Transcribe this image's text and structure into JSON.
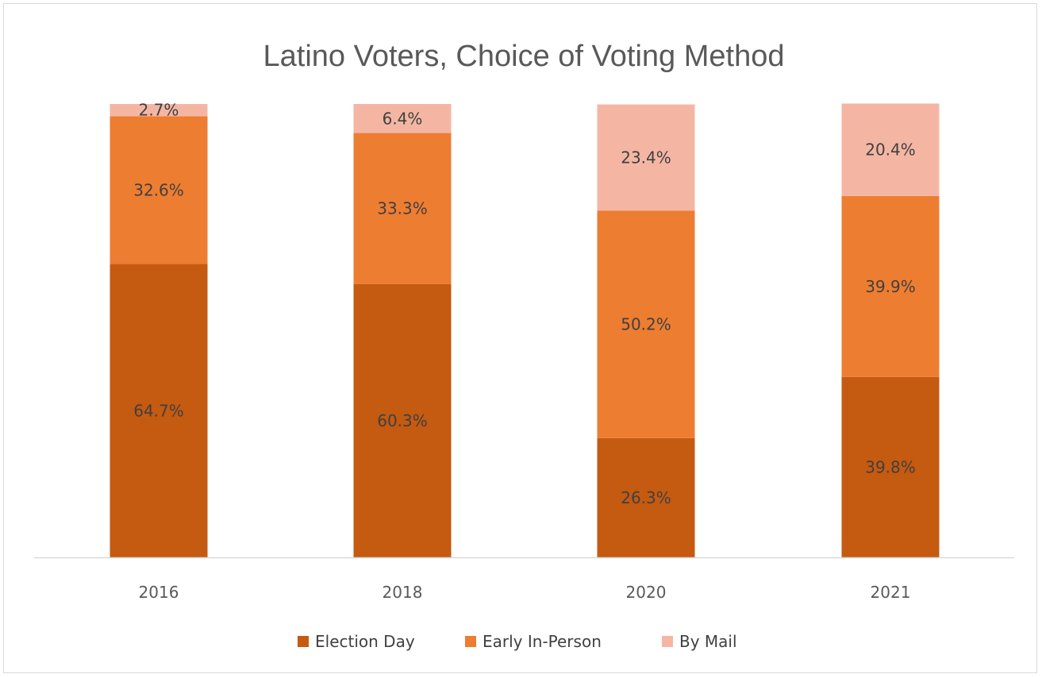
{
  "chart_data": {
    "type": "bar",
    "stacked": true,
    "title": "Latino Voters, Choice of Voting Method",
    "categories": [
      "2016",
      "2018",
      "2020",
      "2021"
    ],
    "series": [
      {
        "name": "Election Day",
        "values": [
          64.7,
          60.3,
          26.3,
          39.8
        ],
        "labels": [
          "64.7%",
          "60.3%",
          "26.3%",
          "39.8%"
        ],
        "color": "#C55A11"
      },
      {
        "name": "Early In-Person",
        "values": [
          32.6,
          33.3,
          50.2,
          39.9
        ],
        "labels": [
          "32.6%",
          "33.3%",
          "50.2%",
          "39.9%"
        ],
        "color": "#ED7D31"
      },
      {
        "name": "By Mail",
        "values": [
          2.7,
          6.4,
          23.4,
          20.4
        ],
        "labels": [
          "2.7%",
          "6.4%",
          "23.4%",
          "20.4%"
        ],
        "color": "#F4B6A3"
      }
    ],
    "ylim": [
      0,
      100
    ],
    "xlabel": "",
    "ylabel": "",
    "grid": false,
    "legend": "bottom-center",
    "axis_color": "#d9d9d9"
  }
}
